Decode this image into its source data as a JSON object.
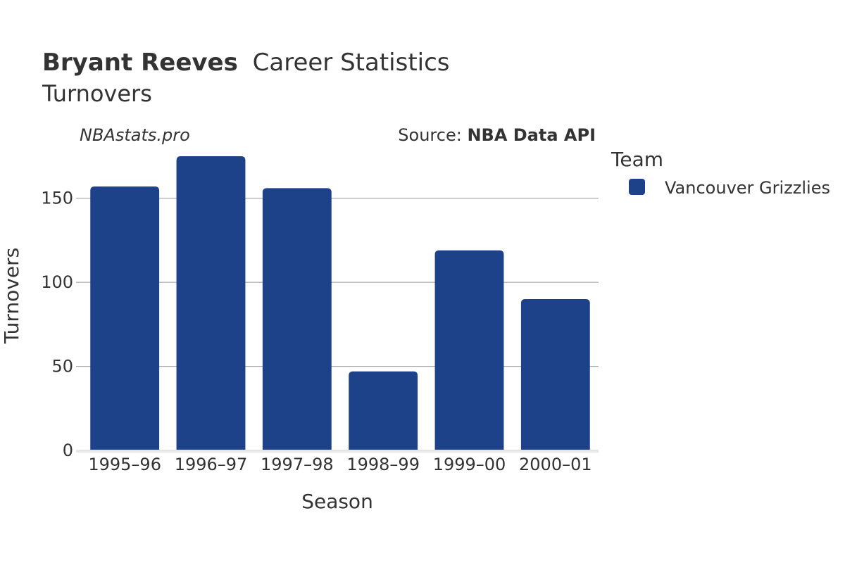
{
  "header": {
    "title_bold": "Bryant Reeves",
    "title_rest": "Career Statistics",
    "subtitle": "Turnovers"
  },
  "watermark": "NBAstats.pro",
  "source": {
    "prefix": "Source: ",
    "name": "NBA Data API"
  },
  "legend": {
    "title": "Team",
    "items": [
      {
        "label": "Vancouver Grizzlies",
        "color": "#1d4289"
      }
    ]
  },
  "chart_data": {
    "type": "bar",
    "title": "Bryant Reeves Career Statistics",
    "subtitle": "Turnovers",
    "xlabel": "Season",
    "ylabel": "Turnovers",
    "categories": [
      "1995–96",
      "1996–97",
      "1997–98",
      "1998–99",
      "1999–00",
      "2000–01"
    ],
    "series": [
      {
        "name": "Vancouver Grizzlies",
        "values": [
          157,
          175,
          156,
          47,
          119,
          90
        ],
        "color": "#1d4289"
      }
    ],
    "ylim": [
      0,
      175
    ],
    "yticks": [
      0,
      50,
      100,
      150
    ],
    "grid": true,
    "legend_position": "right"
  }
}
